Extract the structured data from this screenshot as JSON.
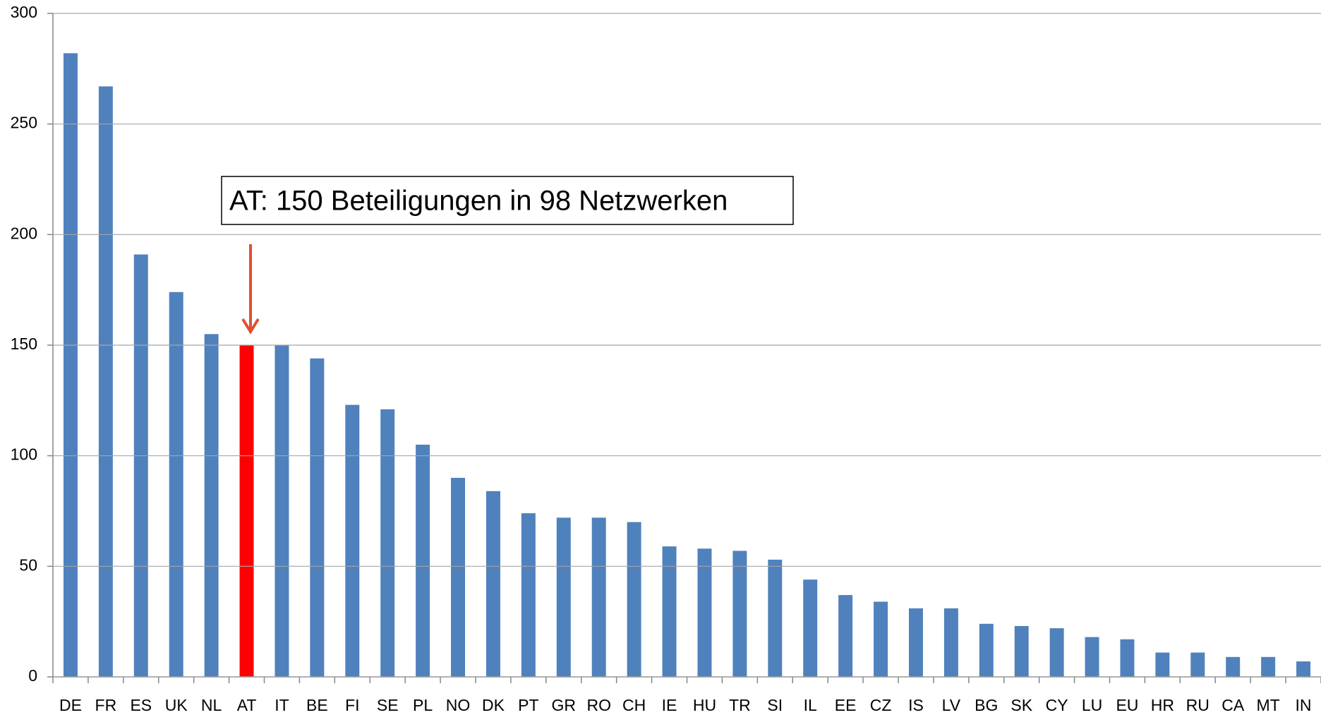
{
  "chart_data": {
    "type": "bar",
    "categories": [
      "DE",
      "FR",
      "ES",
      "UK",
      "NL",
      "AT",
      "IT",
      "BE",
      "FI",
      "SE",
      "PL",
      "NO",
      "DK",
      "PT",
      "GR",
      "RO",
      "CH",
      "IE",
      "HU",
      "TR",
      "SI",
      "IL",
      "EE",
      "CZ",
      "IS",
      "LV",
      "BG",
      "SK",
      "CY",
      "LU",
      "EU",
      "HR",
      "RU",
      "CA",
      "MT",
      "IN"
    ],
    "values": [
      282,
      267,
      191,
      174,
      155,
      150,
      150,
      144,
      123,
      121,
      105,
      90,
      84,
      74,
      72,
      72,
      70,
      59,
      58,
      57,
      53,
      44,
      37,
      34,
      31,
      31,
      24,
      23,
      22,
      18,
      17,
      11,
      11,
      9,
      9,
      7
    ],
    "color": "#4f81bd",
    "highlight": {
      "category": "AT",
      "color": "#ff0000"
    },
    "annotation": "AT: 150 Beteiligungen in 98 Netzwerken",
    "ylim": [
      0,
      300
    ],
    "yticks": [
      0,
      50,
      100,
      150,
      200,
      250,
      300
    ],
    "grid": true
  }
}
